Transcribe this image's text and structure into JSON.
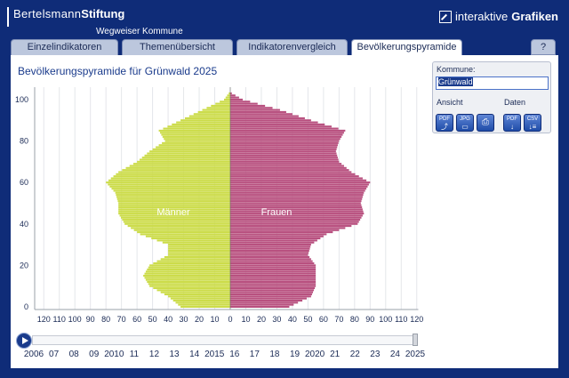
{
  "header": {
    "brand_light": "Bertelsmann",
    "brand_bold": "Stiftung",
    "brand_sub": "Wegweiser Kommune",
    "app_light": "interaktive",
    "app_bold": "Grafiken"
  },
  "tabs": [
    {
      "label": "Einzelindikatoren",
      "active": false
    },
    {
      "label": "Themenübersicht",
      "active": false
    },
    {
      "label": "Indikatorenvergleich",
      "active": false
    },
    {
      "label": "Bevölkerungspyramide",
      "active": true
    }
  ],
  "help_label": "?",
  "main": {
    "title": "Bevölkerungspyramide für Grünwald 2025"
  },
  "panel": {
    "kommune_label": "Kommune:",
    "kommune_value": "Grünwald",
    "ansicht_label": "Ansicht",
    "daten_label": "Daten",
    "buttons": [
      {
        "name": "pdf-view-button",
        "top": "PDF",
        "icon": "pdf-icon"
      },
      {
        "name": "jpg-view-button",
        "top": "JPG",
        "icon": "image-icon"
      },
      {
        "name": "print-button",
        "top": "",
        "icon": "printer-icon"
      },
      {
        "name": "pdf-data-button",
        "top": "PDF",
        "icon": "download-icon"
      },
      {
        "name": "csv-data-button",
        "top": "CSV",
        "icon": "download-icon"
      }
    ]
  },
  "timeline": {
    "years": [
      "2006",
      "07",
      "08",
      "09",
      "2010",
      "11",
      "12",
      "13",
      "14",
      "2015",
      "16",
      "17",
      "18",
      "19",
      "2020",
      "21",
      "22",
      "23",
      "24",
      "2025"
    ],
    "selected": "2025"
  },
  "colors": {
    "maenner": "#ccdc4a",
    "frauen": "#b8507f",
    "frame": "#0f2c78"
  },
  "chart_data": {
    "type": "bar",
    "orientation": "horizontal",
    "left_label": "Männer",
    "right_label": "Frauen",
    "y_ticks": [
      0,
      20,
      40,
      60,
      80,
      100
    ],
    "x_ticks_left": [
      120,
      110,
      100,
      90,
      80,
      70,
      60,
      50,
      40,
      30,
      20,
      10,
      0
    ],
    "x_ticks_right": [
      10,
      20,
      30,
      40,
      50,
      60,
      70,
      80,
      90,
      100,
      110,
      120
    ],
    "age_points": [
      0,
      5,
      10,
      15,
      20,
      25,
      30,
      35,
      40,
      45,
      50,
      55,
      60,
      65,
      70,
      75,
      80,
      85,
      90,
      95,
      100,
      103
    ],
    "maenner": [
      32,
      40,
      52,
      56,
      52,
      40,
      40,
      58,
      68,
      72,
      72,
      74,
      80,
      72,
      60,
      52,
      42,
      46,
      32,
      18,
      4,
      1
    ],
    "frauen": [
      38,
      52,
      55,
      55,
      55,
      50,
      52,
      62,
      82,
      86,
      84,
      86,
      90,
      78,
      70,
      68,
      70,
      74,
      52,
      32,
      8,
      1
    ]
  }
}
